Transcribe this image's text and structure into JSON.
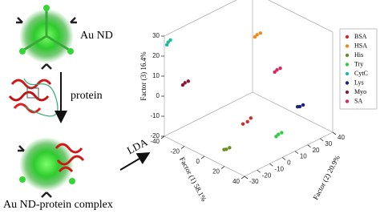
{
  "labels": {
    "nanodot": "Au ND",
    "protein": "protein",
    "lda": "LDA",
    "complex": "Au ND-protein complex"
  },
  "chart_data": {
    "type": "scatter3d",
    "xlabel": "Factor (1) 58.1%",
    "ylabel": "Factor (2) 20.9%",
    "zlabel": "Factor (3) 16.4%",
    "xlim": [
      -40,
      40
    ],
    "xticks": [
      -40,
      -20,
      0,
      20,
      40
    ],
    "ylim": [
      -30,
      40
    ],
    "yticks": [
      -30,
      -20,
      -10,
      0,
      10,
      20,
      30,
      40
    ],
    "zlim": [
      -20,
      30
    ],
    "zticks": [
      -20,
      -10,
      0,
      10,
      20,
      30
    ],
    "series": [
      {
        "name": "BSA",
        "color": "#d42a2a",
        "x": [
          -1,
          1,
          -3
        ],
        "y": [
          5,
          6,
          3
        ],
        "z": [
          -14,
          -12,
          -15
        ]
      },
      {
        "name": "HSA",
        "color": "#f08a1c",
        "x": [
          -9,
          -7,
          -10
        ],
        "y": [
          19,
          20,
          18
        ],
        "z": [
          23,
          24,
          22
        ]
      },
      {
        "name": "His",
        "color": "#6b8e23",
        "x": [
          8,
          10,
          7
        ],
        "y": [
          -19,
          -18,
          -20
        ],
        "z": [
          -18,
          -17,
          -18
        ]
      },
      {
        "name": "Try",
        "color": "#2ecc40",
        "x": [
          21,
          23,
          20
        ],
        "y": [
          12,
          13,
          11
        ],
        "z": [
          -17,
          -16,
          -18
        ]
      },
      {
        "name": "CytC",
        "color": "#1abc9c",
        "x": [
          -40,
          -39,
          -40
        ],
        "y": [
          -27,
          -26,
          -28
        ],
        "z": [
          26,
          27,
          25
        ]
      },
      {
        "name": "Lys",
        "color": "#1a237e",
        "x": [
          16,
          18,
          15
        ],
        "y": [
          33,
          34,
          32
        ],
        "z": [
          -11,
          -10,
          -11
        ]
      },
      {
        "name": "Myo",
        "color": "#8b1a3a",
        "x": [
          -37,
          -35,
          -38
        ],
        "y": [
          -16,
          -15,
          -17
        ],
        "z": [
          3,
          4,
          2
        ]
      },
      {
        "name": "SA",
        "color": "#e0245e",
        "x": [
          2,
          4,
          1
        ],
        "y": [
          26,
          27,
          25
        ],
        "z": [
          6,
          7,
          5
        ]
      }
    ]
  }
}
